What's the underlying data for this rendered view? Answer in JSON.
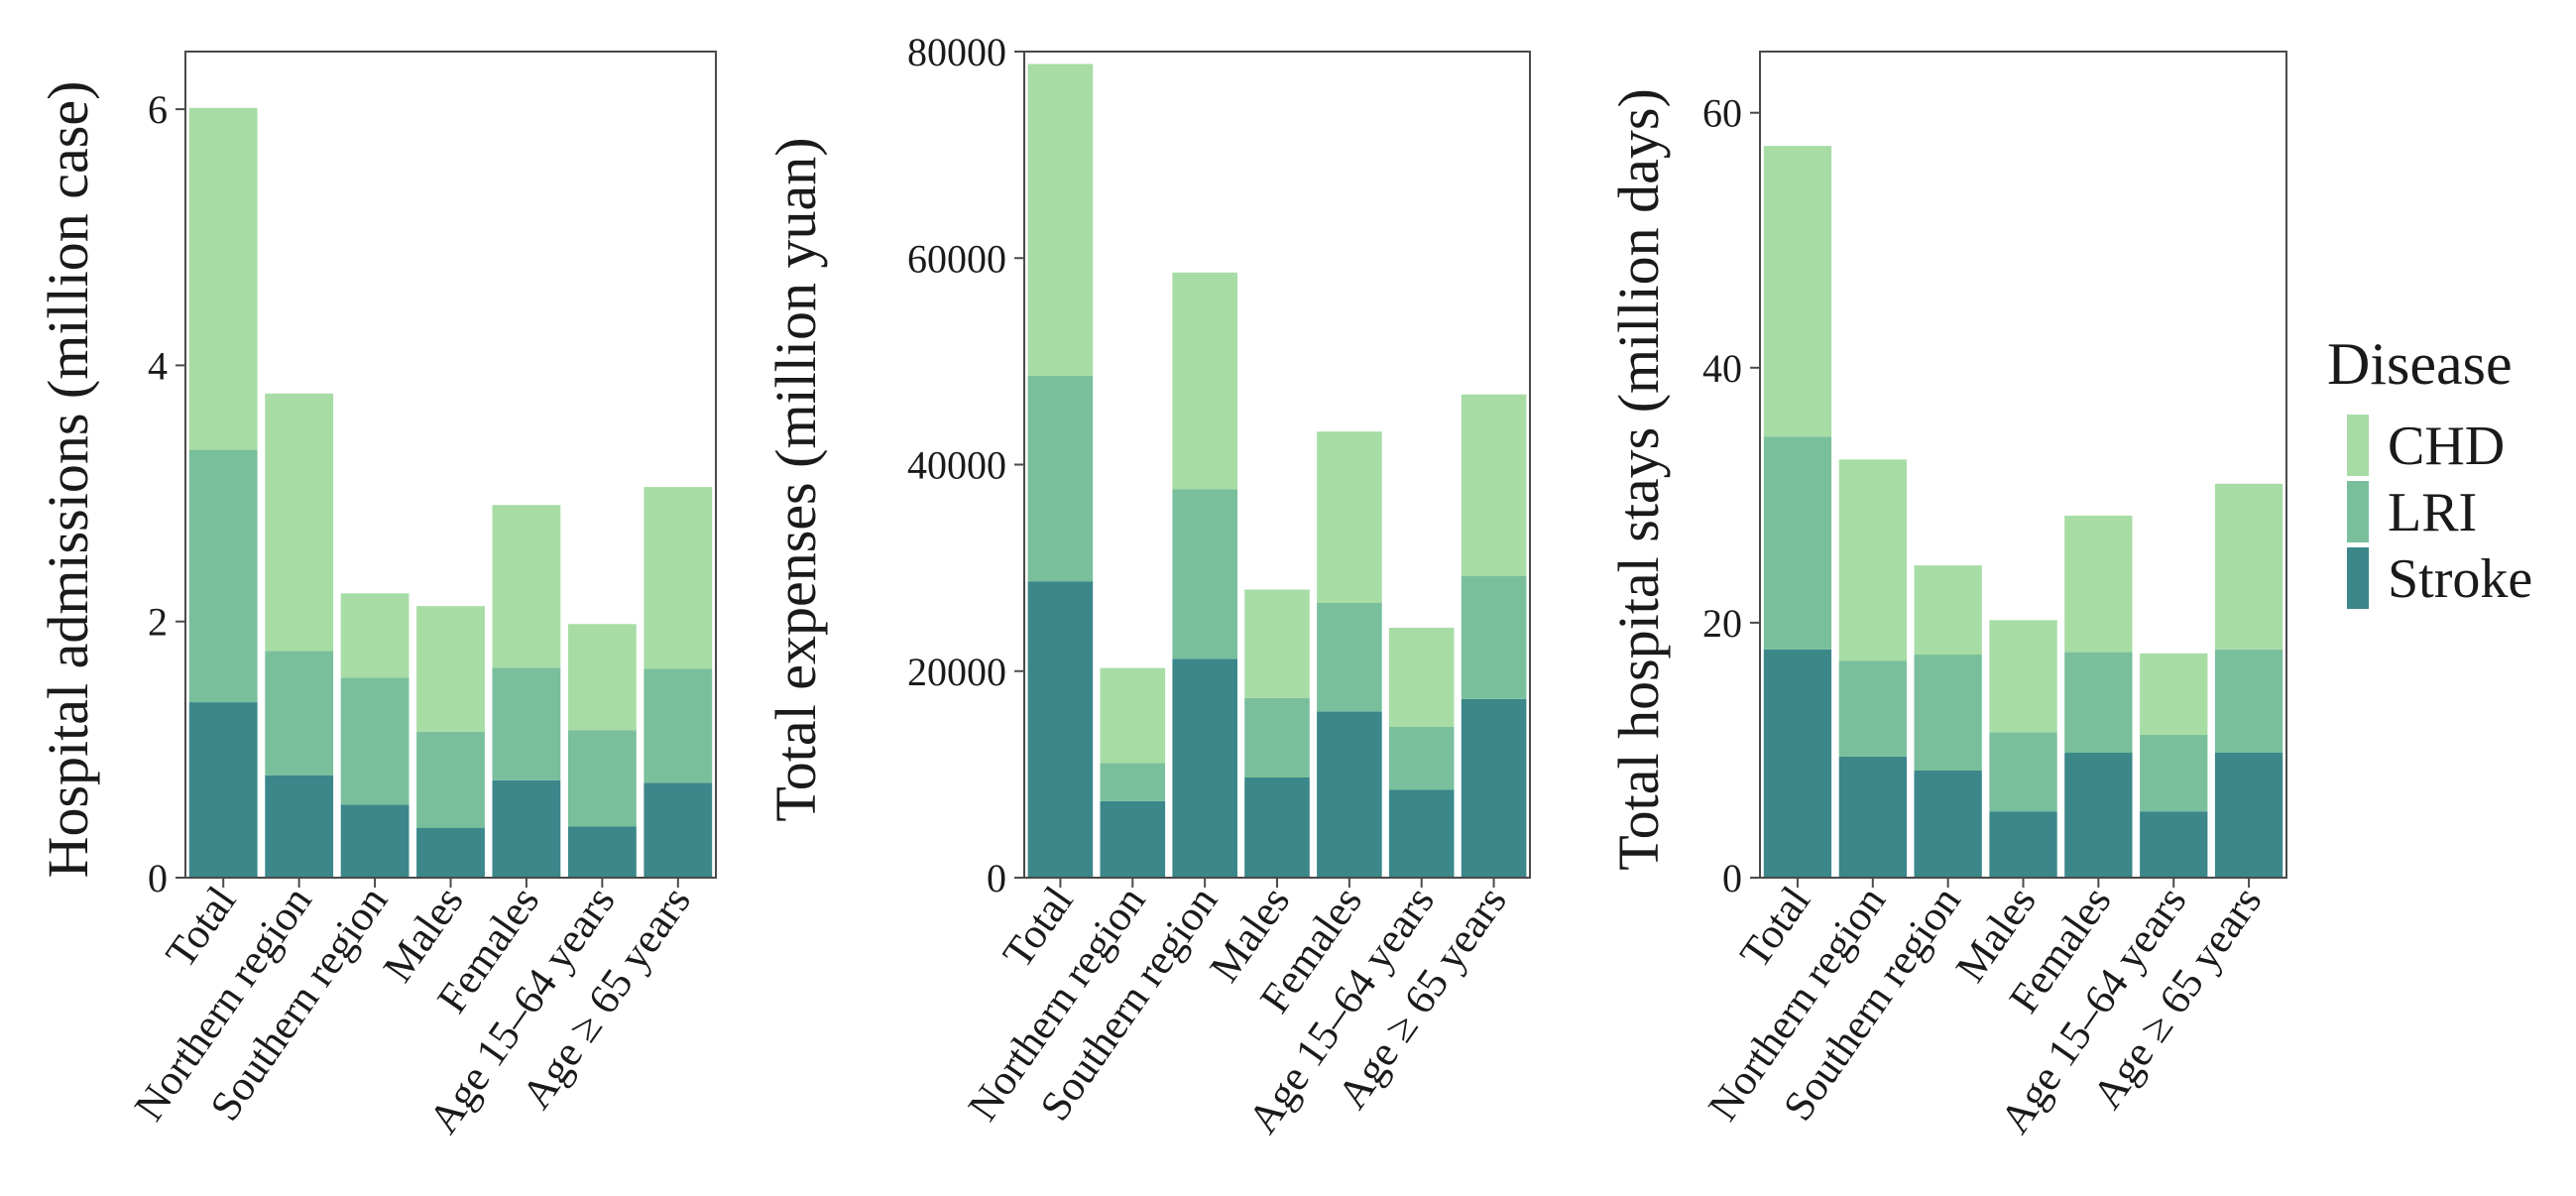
{
  "colors": {
    "CHD": "#a8dca5",
    "LRI": "#7abf9c",
    "Stroke": "#3b878a"
  },
  "legend": {
    "title": "Disease",
    "items": [
      {
        "key": "CHD",
        "label": "CHD"
      },
      {
        "key": "LRI",
        "label": "LRI"
      },
      {
        "key": "Stroke",
        "label": "Stroke"
      }
    ]
  },
  "chart_data": [
    {
      "type": "bar",
      "stacked": true,
      "ylabel": "Hospital admissions (million case)",
      "ylim": [
        0,
        6.45
      ],
      "yticks": [
        0,
        2,
        4,
        6
      ],
      "categories": [
        "Total",
        "Northern region",
        "Southern region",
        "Males",
        "Females",
        "Age 15–64 years",
        "Age ≥ 65 years"
      ],
      "series": [
        {
          "name": "Stroke",
          "values": [
            1.37,
            0.8,
            0.57,
            0.39,
            0.76,
            0.4,
            0.74
          ]
        },
        {
          "name": "LRI",
          "values": [
            1.97,
            0.97,
            0.99,
            0.75,
            0.88,
            0.75,
            0.89
          ]
        },
        {
          "name": "CHD",
          "values": [
            2.67,
            2.01,
            0.66,
            0.98,
            1.27,
            0.83,
            1.42
          ]
        }
      ],
      "grid": false
    },
    {
      "type": "bar",
      "stacked": true,
      "ylabel": "Total expenses (million yuan)",
      "ylim": [
        0,
        80000
      ],
      "yticks": [
        0,
        20000,
        40000,
        60000,
        80000
      ],
      "categories": [
        "Total",
        "Northern region",
        "Southern region",
        "Males",
        "Females",
        "Age 15–64 years",
        "Age ≥ 65 years"
      ],
      "series": [
        {
          "name": "Stroke",
          "values": [
            28700,
            7400,
            21200,
            9700,
            16100,
            8500,
            17300
          ]
        },
        {
          "name": "LRI",
          "values": [
            19900,
            3700,
            16400,
            7700,
            10500,
            6100,
            11900
          ]
        },
        {
          "name": "CHD",
          "values": [
            30200,
            9200,
            21000,
            10500,
            16600,
            9600,
            17600
          ]
        }
      ],
      "grid": false
    },
    {
      "type": "bar",
      "stacked": true,
      "ylabel": "Total hospital stays (million days)",
      "ylim": [
        0,
        64.8
      ],
      "yticks": [
        0,
        20,
        40,
        60
      ],
      "categories": [
        "Total",
        "Northern region",
        "Southern region",
        "Males",
        "Females",
        "Age 15–64 years",
        "Age ≥ 65 years"
      ],
      "series": [
        {
          "name": "Stroke",
          "values": [
            17.9,
            9.5,
            8.4,
            5.2,
            9.8,
            5.2,
            9.8
          ]
        },
        {
          "name": "LRI",
          "values": [
            16.7,
            7.5,
            9.1,
            6.2,
            7.9,
            6.0,
            8.1
          ]
        },
        {
          "name": "CHD",
          "values": [
            22.8,
            15.8,
            7.0,
            8.8,
            10.7,
            6.4,
            13.0
          ]
        }
      ],
      "grid": false
    }
  ]
}
